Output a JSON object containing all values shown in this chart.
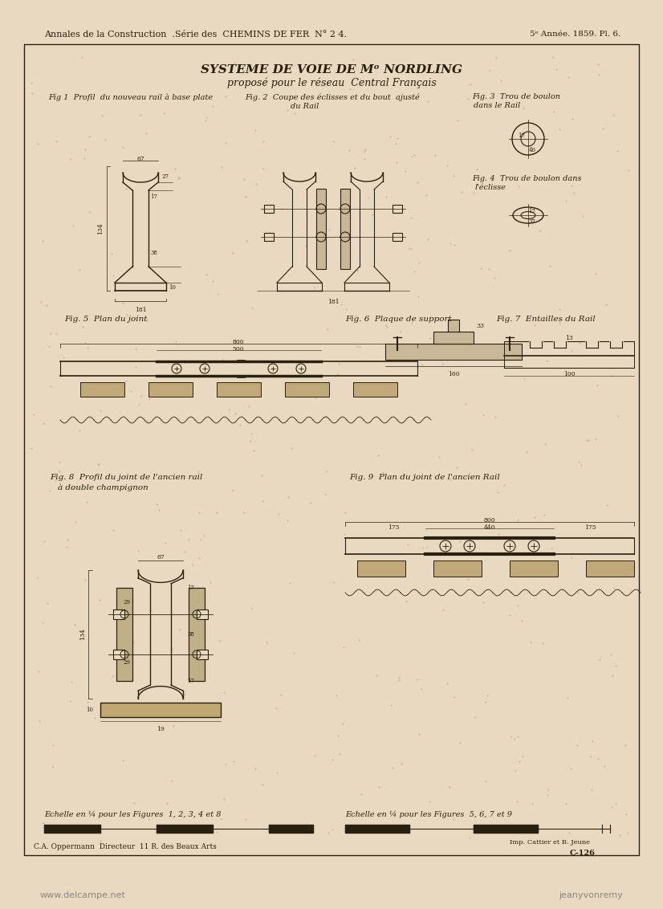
{
  "bg_color": "#d4c4a8",
  "page_bg": "#e8d9c0",
  "border_color": "#3a3020",
  "text_color": "#2a2010",
  "line_color": "#2a2010",
  "header_text": "Annales de la Construction  .Série des  CHEMINS DE FER  N° 2 4.",
  "header_right": "5ᵉ Année. 1859. Pl. 6.",
  "title_main": "SYSTEME DE VOIE DE Mᵒ NORDLING",
  "title_sub": "proposé pour le réseau  Central Français",
  "fig1_label": "Fig 1  Profil  du nouveau rail à base plate",
  "fig2_label": "Fig. 2  Coupe des éclisses et du bout  ajusté",
  "fig2_label2": "du Rail",
  "fig3_label": "Fig. 3  Trou de boulon",
  "fig3_label2": "dans le Rail",
  "fig4_label": "Fig. 4  Trou de boulon dans",
  "fig4_label2": "l'éclisse",
  "fig5_label": "Fig. 5  Plan du joint",
  "fig6_label": "Fig. 6  Plaque de support",
  "fig7_label": "Fig. 7  Entailles du Rail",
  "fig8_label": "Fig. 8  Profil du joint de l'ancien rail",
  "fig8_label2": "à double champignon",
  "fig9_label": "Fig. 9  Plan du joint de l'ancien Rail",
  "scale1_label": "Echelle en ¼ pour les Figures  1, 2, 3, 4 et 8",
  "scale2_label": "Echelle en ¼ pour les Figures  5, 6, 7 et 9",
  "footer_left": "C.A. Oppermann  Directeur  11 R. des Beaux Arts",
  "footer_right": "C-126",
  "footer_right2": "Imp. Cattier et B. Jeune",
  "watermark_left": "www.delcampe.net",
  "watermark_right": "jeanyvonremy"
}
